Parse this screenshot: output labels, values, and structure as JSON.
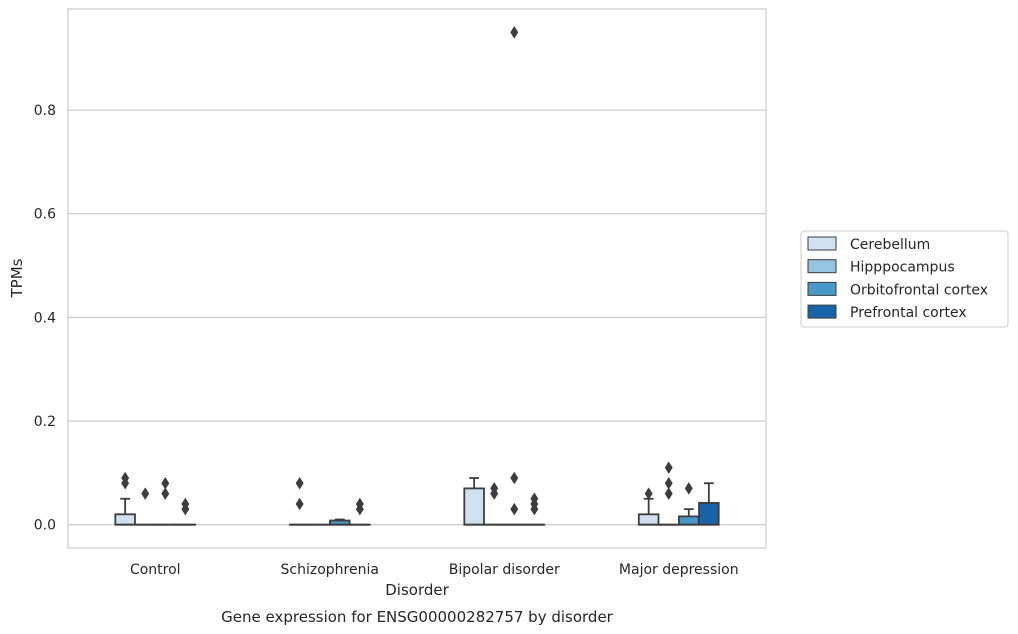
{
  "chart_data": {
    "type": "box",
    "title": "Gene expression for ENSG00000282757 by disorder",
    "xlabel": "Disorder",
    "ylabel": "TPMs",
    "categories": [
      "Control",
      "Schizophrenia",
      "Bipolar disorder",
      "Major depression"
    ],
    "y_ticks": [
      "0.0",
      "0.2",
      "0.4",
      "0.6",
      "0.8"
    ],
    "ylim": [
      -0.045,
      0.995
    ],
    "grid": "y",
    "legend_position": "right",
    "series": [
      {
        "name": "Cerebellum",
        "color": "#d0e1f2",
        "boxes": [
          {
            "q1": 0.0,
            "median": 0.0,
            "q3": 0.02,
            "whisker_low": 0.0,
            "whisker_high": 0.05,
            "outliers": [
              0.08,
              0.09
            ]
          },
          {
            "q1": 0.0,
            "median": 0.0,
            "q3": 0.0,
            "whisker_low": 0.0,
            "whisker_high": 0.0,
            "outliers": [
              0.04,
              0.08
            ]
          },
          {
            "q1": 0.0,
            "median": 0.0,
            "q3": 0.07,
            "whisker_low": 0.0,
            "whisker_high": 0.09,
            "outliers": []
          },
          {
            "q1": 0.0,
            "median": 0.0,
            "q3": 0.02,
            "whisker_low": 0.0,
            "whisker_high": 0.05,
            "outliers": [
              0.06
            ]
          }
        ]
      },
      {
        "name": "Hipppocampus",
        "color": "#94c4df",
        "boxes": [
          {
            "q1": 0.0,
            "median": 0.0,
            "q3": 0.0,
            "whisker_low": 0.0,
            "whisker_high": 0.0,
            "outliers": [
              0.06
            ]
          },
          {
            "q1": 0.0,
            "median": 0.0,
            "q3": 0.0,
            "whisker_low": 0.0,
            "whisker_high": 0.0,
            "outliers": []
          },
          {
            "q1": 0.0,
            "median": 0.0,
            "q3": 0.0,
            "whisker_low": 0.0,
            "whisker_high": 0.0,
            "outliers": [
              0.06,
              0.07
            ]
          },
          {
            "q1": 0.0,
            "median": 0.0,
            "q3": 0.0,
            "whisker_low": 0.0,
            "whisker_high": 0.0,
            "outliers": [
              0.06,
              0.08,
              0.11
            ]
          }
        ]
      },
      {
        "name": "Orbitofrontal cortex",
        "color": "#4a98c9",
        "boxes": [
          {
            "q1": 0.0,
            "median": 0.0,
            "q3": 0.0,
            "whisker_low": 0.0,
            "whisker_high": 0.0,
            "outliers": [
              0.06,
              0.08
            ]
          },
          {
            "q1": 0.0,
            "median": 0.0,
            "q3": 0.008,
            "whisker_low": 0.0,
            "whisker_high": 0.01,
            "outliers": []
          },
          {
            "q1": 0.0,
            "median": 0.0,
            "q3": 0.0,
            "whisker_low": 0.0,
            "whisker_high": 0.0,
            "outliers": [
              0.95,
              0.03,
              0.09
            ]
          },
          {
            "q1": 0.0,
            "median": 0.0,
            "q3": 0.016,
            "whisker_low": 0.0,
            "whisker_high": 0.03,
            "outliers": [
              0.07
            ]
          }
        ]
      },
      {
        "name": "Prefrontal cortex",
        "color": "#1764ab",
        "boxes": [
          {
            "q1": 0.0,
            "median": 0.0,
            "q3": 0.0,
            "whisker_low": 0.0,
            "whisker_high": 0.0,
            "outliers": [
              0.03,
              0.04
            ]
          },
          {
            "q1": 0.0,
            "median": 0.0,
            "q3": 0.0,
            "whisker_low": 0.0,
            "whisker_high": 0.0,
            "outliers": [
              0.03,
              0.04
            ]
          },
          {
            "q1": 0.0,
            "median": 0.0,
            "q3": 0.0,
            "whisker_low": 0.0,
            "whisker_high": 0.0,
            "outliers": [
              0.03,
              0.04,
              0.05
            ]
          },
          {
            "q1": 0.0,
            "median": 0.0,
            "q3": 0.042,
            "whisker_low": 0.0,
            "whisker_high": 0.08,
            "outliers": []
          }
        ]
      }
    ]
  }
}
